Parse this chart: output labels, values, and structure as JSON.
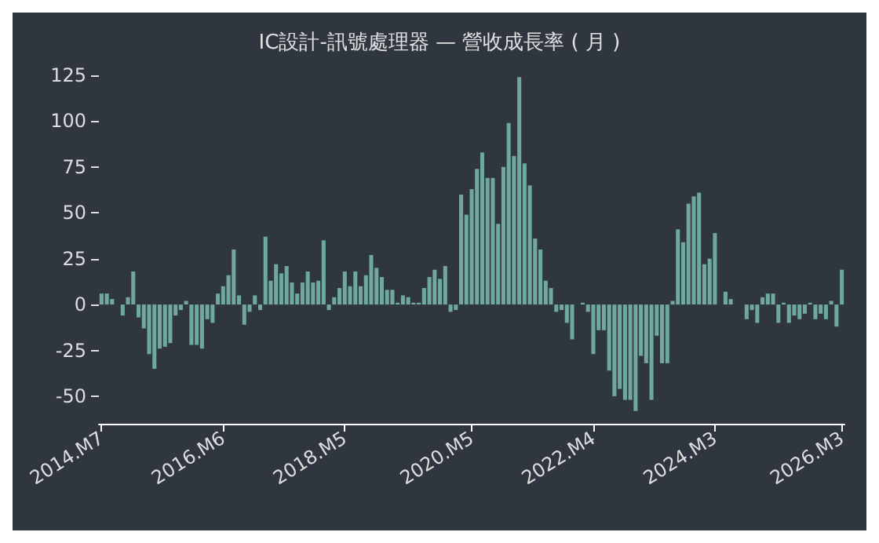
{
  "chart_data": {
    "type": "bar",
    "title": "IC設計-訊號處理器 — 營收成長率 ( 月 )",
    "categories": [
      "2014.M7",
      null,
      null,
      null,
      null,
      null,
      null,
      null,
      null,
      null,
      null,
      null,
      null,
      null,
      null,
      null,
      null,
      null,
      null,
      null,
      null,
      null,
      null,
      "2016.M6",
      null,
      null,
      null,
      null,
      null,
      null,
      null,
      null,
      null,
      null,
      null,
      null,
      null,
      null,
      null,
      null,
      null,
      null,
      null,
      null,
      null,
      null,
      "2018.M5",
      null,
      null,
      null,
      null,
      null,
      null,
      null,
      null,
      null,
      null,
      null,
      null,
      null,
      null,
      null,
      null,
      null,
      null,
      null,
      null,
      null,
      null,
      null,
      "2020.M5",
      null,
      null,
      null,
      null,
      null,
      null,
      null,
      null,
      null,
      null,
      null,
      null,
      null,
      null,
      null,
      null,
      null,
      null,
      null,
      null,
      null,
      null,
      "2022.M4",
      null,
      null,
      null,
      null,
      null,
      null,
      null,
      null,
      null,
      null,
      null,
      null,
      null,
      null,
      null,
      null,
      null,
      null,
      null,
      null,
      null,
      null,
      "2024.M3",
      null,
      null,
      null,
      null,
      null,
      null,
      null,
      null,
      null,
      null,
      null,
      null,
      null,
      null,
      null,
      null,
      null,
      null,
      null,
      null,
      null,
      null,
      null,
      "2026.M3"
    ],
    "values": [
      6,
      6,
      3,
      0,
      -6,
      4,
      18,
      -7,
      -13,
      -27,
      -35,
      -24,
      -23,
      -21,
      -6,
      -3,
      2,
      -22,
      -22,
      -24,
      -8,
      -10,
      6,
      10,
      16,
      30,
      5,
      -11,
      -4,
      5,
      -3,
      37,
      13,
      22,
      17,
      21,
      12,
      6,
      12,
      18,
      12,
      13,
      35,
      -3,
      4,
      9,
      18,
      10,
      18,
      10,
      16,
      27,
      20,
      15,
      8,
      8,
      1,
      5,
      4,
      1,
      1,
      9,
      15,
      19,
      14,
      21,
      -4,
      -3,
      60,
      49,
      63,
      74,
      83,
      69,
      69,
      44,
      75,
      99,
      81,
      124,
      77,
      65,
      36,
      30,
      13,
      9,
      -4,
      -3,
      -10,
      -19,
      0,
      1,
      -4,
      -27,
      -14,
      -14,
      -36,
      -50,
      -46,
      -52,
      -52,
      -58,
      -28,
      -32,
      -52,
      -17,
      -32,
      -32,
      2,
      41,
      34,
      55,
      59,
      61,
      22,
      25,
      39,
      0,
      7,
      3,
      0,
      0,
      -8,
      -3,
      -10,
      4,
      6,
      6,
      -10,
      1,
      -10,
      -6,
      -8,
      -5,
      1,
      -8,
      -5,
      -8,
      2,
      -12,
      19
    ],
    "color": "#6fa8a0",
    "ylim": [
      -65,
      125
    ],
    "yticks": [
      -50,
      -25,
      0,
      25,
      50,
      75,
      100,
      125
    ],
    "grid": false
  }
}
